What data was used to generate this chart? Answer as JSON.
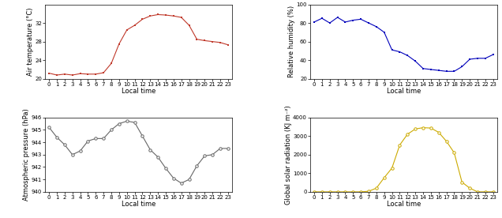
{
  "hours": [
    0,
    1,
    2,
    3,
    4,
    5,
    6,
    7,
    8,
    9,
    10,
    11,
    12,
    13,
    14,
    15,
    16,
    17,
    18,
    19,
    20,
    21,
    22,
    23
  ],
  "temperature": [
    21.2,
    20.8,
    21.0,
    20.8,
    21.1,
    21.0,
    21.0,
    21.3,
    23.3,
    27.5,
    30.5,
    31.5,
    32.8,
    33.5,
    33.8,
    33.7,
    33.5,
    33.2,
    31.5,
    28.5,
    28.2,
    28.0,
    27.8,
    27.3
  ],
  "temp_color": "#c0392b",
  "temp_ylim": [
    20,
    36
  ],
  "temp_yticks": [
    20,
    24,
    28,
    32
  ],
  "temp_ylabel": "Air temperature (°C)",
  "humidity": [
    81,
    85,
    80,
    86,
    81,
    83,
    84,
    80,
    76,
    70,
    51,
    49,
    45,
    39,
    31,
    30,
    29,
    28,
    28,
    33,
    41,
    42,
    42,
    46
  ],
  "hum_color": "#0000bb",
  "hum_ylim": [
    20,
    100
  ],
  "hum_yticks": [
    20,
    40,
    60,
    80,
    100
  ],
  "hum_ylabel": "Relative humidity (%)",
  "pressure": [
    945.2,
    944.4,
    943.8,
    943.0,
    943.3,
    944.1,
    944.3,
    944.3,
    945.0,
    945.5,
    945.7,
    945.6,
    944.5,
    943.4,
    942.8,
    941.9,
    941.1,
    940.7,
    941.0,
    942.1,
    942.9,
    943.0,
    943.5,
    943.5
  ],
  "pres_color": "#666666",
  "pres_ylim": [
    940,
    946
  ],
  "pres_yticks": [
    940,
    941,
    942,
    943,
    944,
    945,
    946
  ],
  "pres_ylabel": "Atmospheric pressure (hPa)",
  "solar": [
    0,
    0,
    0,
    0,
    0,
    0,
    0,
    30,
    200,
    760,
    1280,
    2520,
    3100,
    3380,
    3450,
    3430,
    3200,
    2720,
    2100,
    520,
    200,
    0,
    0,
    0
  ],
  "solar_color": "#ccaa00",
  "solar_ylim": [
    0,
    4000
  ],
  "solar_yticks": [
    0,
    1000,
    2000,
    3000,
    4000
  ],
  "solar_ylabel": "Global solar radiation (KJ m⁻²)",
  "xlabel": "Local time",
  "xticks": [
    0,
    1,
    2,
    3,
    4,
    5,
    6,
    7,
    8,
    9,
    10,
    11,
    12,
    13,
    14,
    15,
    16,
    17,
    18,
    19,
    20,
    21,
    22,
    23
  ]
}
